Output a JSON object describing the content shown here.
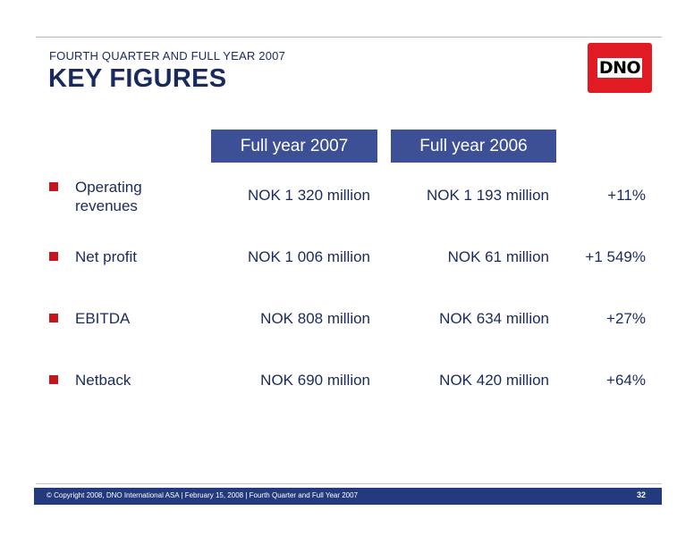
{
  "header": {
    "subtitle": "FOURTH QUARTER AND FULL YEAR 2007",
    "title": "KEY FIGURES",
    "logo_text": "DNO"
  },
  "table": {
    "columns": [
      "Full year 2007",
      "Full year 2006"
    ],
    "rows": [
      {
        "label": "Operating revenues",
        "fy2007": "NOK 1 320 million",
        "fy2006": "NOK 1 193 million",
        "change": "+11%"
      },
      {
        "label": "Net profit",
        "fy2007": "NOK 1 006 million",
        "fy2006": "NOK 61 million",
        "change": "+1 549%"
      },
      {
        "label": "EBITDA",
        "fy2007": "NOK 808 million",
        "fy2006": "NOK 634 million",
        "change": "+27%"
      },
      {
        "label": "Netback",
        "fy2007": "NOK 690 million",
        "fy2006": "NOK 420 million",
        "change": "+64%"
      }
    ]
  },
  "footer": {
    "text": "© Copyright 2008, DNO International ASA | February 15, 2008 | Fourth Quarter and Full Year 2007",
    "page": "32"
  },
  "colors": {
    "navy": "#1b2a5c",
    "header_blue": "#3d4f95",
    "footer_blue": "#243a7e",
    "bullet_red": "#c4161c",
    "logo_red": "#e01b24"
  }
}
